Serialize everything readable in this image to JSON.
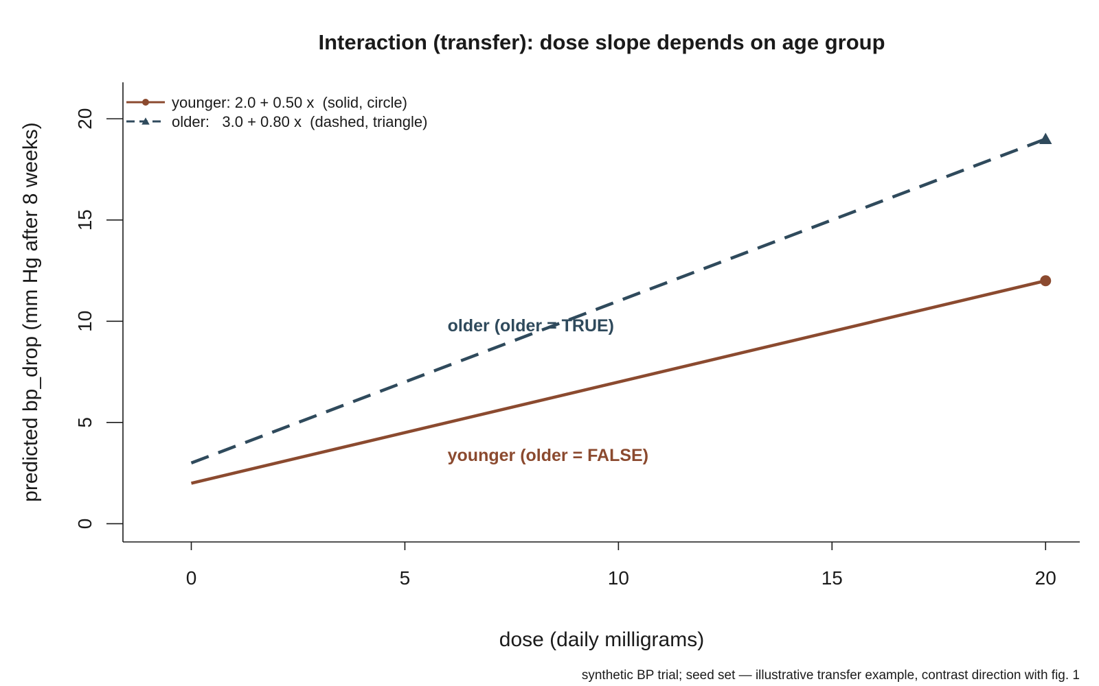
{
  "chart_data": {
    "type": "line",
    "title": "Interaction (transfer): dose slope depends on age group",
    "xlabel": "dose (daily milligrams)",
    "ylabel": "predicted bp_drop (mm Hg after 8 weeks)",
    "caption": "synthetic BP trial; seed set — illustrative transfer example, contrast direction with fig. 1",
    "xlim": [
      -1.6,
      20.8
    ],
    "ylim": [
      -0.9,
      21.8
    ],
    "x_ticks": [
      0,
      5,
      10,
      15,
      20
    ],
    "y_ticks": [
      0,
      5,
      10,
      15,
      20
    ],
    "grid": false,
    "legend_position": "top-left",
    "series": [
      {
        "name": "younger: 2.0 + 0.50 x  (solid, circle)",
        "intercept": 2.0,
        "slope": 0.5,
        "x": [
          0,
          20
        ],
        "y": [
          2.0,
          12.0
        ],
        "color": "#8b4a2f",
        "line_style": "solid",
        "marker": "circle",
        "annotation": "younger (older = FALSE)",
        "annotation_at": [
          6,
          3.1
        ]
      },
      {
        "name": "older:   3.0 + 0.80 x  (dashed, triangle)",
        "intercept": 3.0,
        "slope": 0.8,
        "x": [
          0,
          20
        ],
        "y": [
          3.0,
          19.0
        ],
        "color": "#2f4a5c",
        "line_style": "dashed",
        "marker": "triangle",
        "annotation": "older (older = TRUE)",
        "annotation_at": [
          6,
          9.5
        ]
      }
    ]
  }
}
